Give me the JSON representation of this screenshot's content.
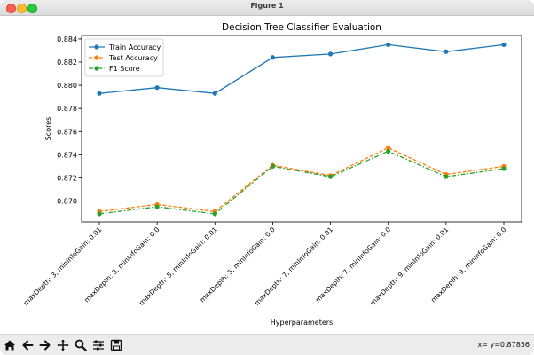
{
  "window": {
    "title": "Figure 1"
  },
  "toolbar": {
    "buttons": [
      "home-icon",
      "back-icon",
      "forward-icon",
      "pan-icon",
      "zoom-icon",
      "configure-icon",
      "save-icon"
    ],
    "coords_text": "x= y=0.87856"
  },
  "chart_data": {
    "type": "line",
    "title": "Decision Tree Classifier Evaluation",
    "xlabel": "Hyperparameters",
    "ylabel": "Scores",
    "categories": [
      "maxDepth: 3, minInfoGain: 0.01",
      "maxDepth: 3, minInfoGain: 0.0",
      "maxDepth: 5, minInfoGain: 0.01",
      "maxDepth: 5, minInfoGain: 0.0",
      "maxDepth: 7, minInfoGain: 0.01",
      "maxDepth: 7, minInfoGain: 0.0",
      "maxDepth: 9, minInfoGain: 0.01",
      "maxDepth: 9, minInfoGain: 0.0"
    ],
    "series": [
      {
        "name": "Train Accuracy",
        "color": "#1f77b4",
        "style": "solid",
        "values": [
          0.8793,
          0.8798,
          0.8793,
          0.8824,
          0.8827,
          0.8835,
          0.8829,
          0.8835
        ]
      },
      {
        "name": "Test Accuracy",
        "color": "#ff7f0e",
        "style": "dashed",
        "values": [
          0.8691,
          0.8697,
          0.8691,
          0.8731,
          0.8722,
          0.8746,
          0.8723,
          0.873
        ]
      },
      {
        "name": "F1 Score",
        "color": "#2ca02c",
        "style": "dashdot",
        "values": [
          0.8689,
          0.8695,
          0.8689,
          0.873,
          0.8721,
          0.8743,
          0.8721,
          0.8728
        ]
      }
    ],
    "yticks": [
      "0.870",
      "0.872",
      "0.874",
      "0.876",
      "0.878",
      "0.880",
      "0.882",
      "0.884"
    ],
    "ylim": [
      0.8682,
      0.8843
    ],
    "grid": false,
    "legend": "top-left"
  }
}
